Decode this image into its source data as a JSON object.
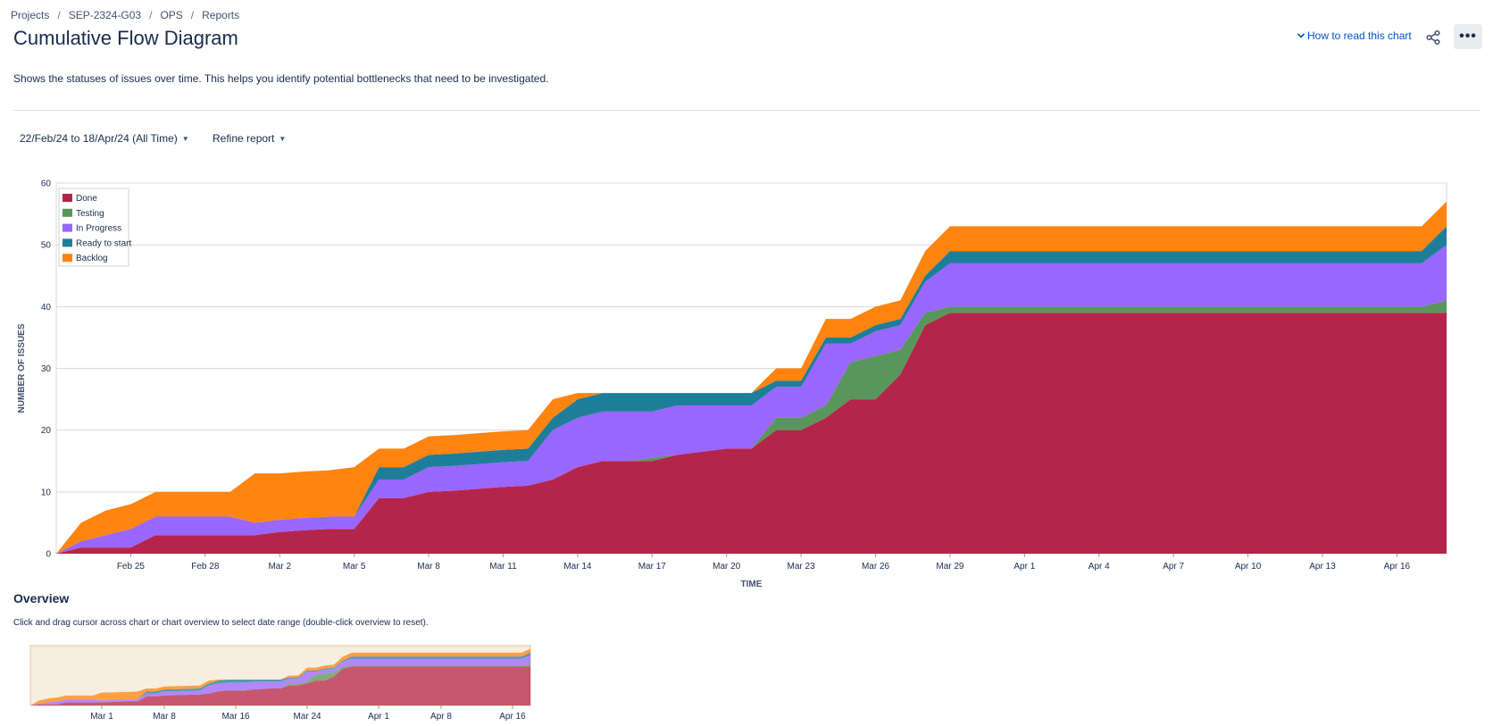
{
  "breadcrumb": {
    "items": [
      "Projects",
      "SEP-2324-G03",
      "OPS",
      "Reports"
    ],
    "separator": "/"
  },
  "page": {
    "title": "Cumulative Flow Diagram",
    "description": "Shows the statuses of issues over time. This helps you identify potential bottlenecks that need to be investigated.",
    "help_link": "How to read this chart",
    "share_icon": "share-icon",
    "more_icon": "more-icon",
    "more_label": "•••"
  },
  "filters": {
    "date_range": "22/Feb/24 to 18/Apr/24 (All Time)",
    "refine": "Refine report"
  },
  "overview": {
    "title": "Overview",
    "hint": "Click and drag cursor across chart or chart overview to select date range (double-click overview to reset)."
  },
  "colors": {
    "accent": "#0052cc",
    "done": "#b5244a",
    "testing": "#58965b",
    "in_progress": "#9966ff",
    "ready_to_start": "#1e7e99",
    "backlog": "#ff8410"
  },
  "chart_data": {
    "type": "area",
    "stacked": true,
    "xlabel": "TIME",
    "ylabel": "NUMBER OF ISSUES",
    "ylim": [
      0,
      60
    ],
    "yticks": [
      0,
      10,
      20,
      30,
      40,
      50,
      60
    ],
    "xlim": [
      "2024-02-22",
      "2024-04-18"
    ],
    "xticks": [
      "Feb 25",
      "Feb 28",
      "Mar 2",
      "Mar 5",
      "Mar 8",
      "Mar 11",
      "Mar 14",
      "Mar 17",
      "Mar 20",
      "Mar 23",
      "Mar 26",
      "Mar 29",
      "Apr 1",
      "Apr 4",
      "Apr 7",
      "Apr 10",
      "Apr 13",
      "Apr 16"
    ],
    "legend_position": "top-left",
    "grid": true,
    "x": [
      "2024-02-22",
      "2024-02-23",
      "2024-02-24",
      "2024-02-25",
      "2024-02-26",
      "2024-02-27",
      "2024-02-28",
      "2024-02-29",
      "2024-03-01",
      "2024-03-02",
      "2024-03-03",
      "2024-03-04",
      "2024-03-05",
      "2024-03-06",
      "2024-03-07",
      "2024-03-08",
      "2024-03-09",
      "2024-03-10",
      "2024-03-11",
      "2024-03-12",
      "2024-03-13",
      "2024-03-14",
      "2024-03-15",
      "2024-03-16",
      "2024-03-17",
      "2024-03-18",
      "2024-03-19",
      "2024-03-20",
      "2024-03-21",
      "2024-03-22",
      "2024-03-23",
      "2024-03-24",
      "2024-03-25",
      "2024-03-26",
      "2024-03-27",
      "2024-03-28",
      "2024-03-29",
      "2024-03-30",
      "2024-03-31",
      "2024-04-01",
      "2024-04-02",
      "2024-04-03",
      "2024-04-04",
      "2024-04-05",
      "2024-04-06",
      "2024-04-07",
      "2024-04-08",
      "2024-04-09",
      "2024-04-10",
      "2024-04-11",
      "2024-04-12",
      "2024-04-13",
      "2024-04-14",
      "2024-04-15",
      "2024-04-16",
      "2024-04-17",
      "2024-04-18"
    ],
    "series": [
      {
        "name": "Done",
        "color": "#b5244a",
        "values": [
          0,
          1,
          1,
          1,
          3,
          3,
          3,
          3,
          3,
          3.5,
          3.8,
          4,
          4,
          9,
          9,
          10,
          10.2,
          10.5,
          10.8,
          11,
          12,
          14,
          15,
          15,
          15,
          16,
          16.5,
          17,
          17,
          20,
          20,
          22,
          25,
          25,
          29,
          37,
          39,
          39,
          39,
          39,
          39,
          39,
          39,
          39,
          39,
          39,
          39,
          39,
          39,
          39,
          39,
          39,
          39,
          39,
          39,
          39,
          39
        ]
      },
      {
        "name": "Testing",
        "color": "#58965b",
        "values": [
          0,
          0,
          0,
          0,
          0,
          0,
          0,
          0,
          0,
          0,
          0,
          0,
          0,
          0,
          0,
          0,
          0,
          0,
          0,
          0,
          0,
          0,
          0,
          0,
          0.5,
          0,
          0,
          0,
          0,
          2,
          2,
          2,
          6,
          7,
          4,
          2,
          1,
          1,
          1,
          1,
          1,
          1,
          1,
          1,
          1,
          1,
          1,
          1,
          1,
          1,
          1,
          1,
          1,
          1,
          1,
          1,
          2
        ]
      },
      {
        "name": "In Progress",
        "color": "#9966ff",
        "values": [
          0,
          1,
          2,
          3,
          3,
          3,
          3,
          3,
          2,
          2,
          2,
          2,
          2,
          3,
          3,
          4,
          4,
          4,
          4,
          4,
          8,
          8,
          8,
          8,
          7.5,
          8,
          7.5,
          7,
          7,
          5,
          5,
          10,
          3,
          4,
          4,
          5,
          7,
          7,
          7,
          7,
          7,
          7,
          7,
          7,
          7,
          7,
          7,
          7,
          7,
          7,
          7,
          7,
          7,
          7,
          7,
          7,
          9
        ]
      },
      {
        "name": "Ready to start",
        "color": "#1e7e99",
        "values": [
          0,
          0,
          0,
          0,
          0,
          0,
          0,
          0,
          0,
          0,
          0,
          0,
          0,
          2,
          2,
          2,
          2,
          2,
          2,
          2,
          2,
          3,
          3,
          3,
          3,
          2,
          2,
          2,
          2,
          1,
          1,
          1,
          1,
          1,
          1,
          1,
          2,
          2,
          2,
          2,
          2,
          2,
          2,
          2,
          2,
          2,
          2,
          2,
          2,
          2,
          2,
          2,
          2,
          2,
          2,
          2,
          3
        ]
      },
      {
        "name": "Backlog",
        "color": "#ff8410",
        "values": [
          0,
          3,
          4,
          4,
          4,
          4,
          4,
          4,
          8,
          7.5,
          7.5,
          7.5,
          8,
          3,
          3,
          3,
          3,
          3,
          3,
          3,
          3,
          1,
          0,
          0,
          0,
          0,
          0,
          0,
          0,
          2,
          2,
          3,
          3,
          3,
          3,
          4,
          4,
          4,
          4,
          4,
          4,
          4,
          4,
          4,
          4,
          4,
          4,
          4,
          4,
          4,
          4,
          4,
          4,
          4,
          4,
          4,
          4
        ]
      }
    ],
    "overview": {
      "xticks": [
        "Mar 1",
        "Mar 8",
        "Mar 16",
        "Mar 24",
        "Apr 1",
        "Apr 8",
        "Apr 16"
      ],
      "background": "#f8eee0"
    }
  }
}
